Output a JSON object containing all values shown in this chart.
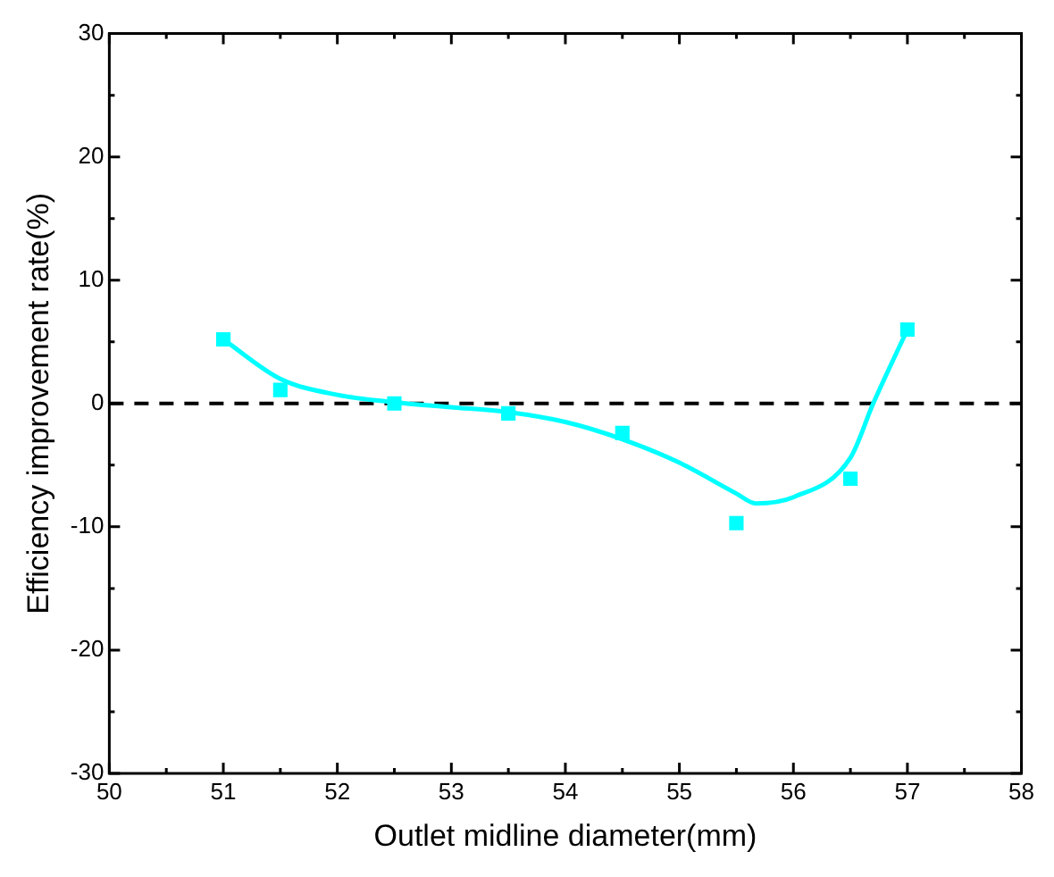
{
  "chart_data": {
    "type": "scatter",
    "xlabel": "Outlet midline diameter(mm)",
    "ylabel": "Efficiency improvement rate(%)",
    "xlim": [
      50,
      58
    ],
    "xticks": [
      50,
      51,
      52,
      53,
      54,
      55,
      56,
      57,
      58
    ],
    "ylim": [
      -30,
      30
    ],
    "yticks": [
      -30,
      -20,
      -10,
      0,
      10,
      20,
      30
    ],
    "grid": false,
    "legend": false,
    "marker": "square",
    "series": [
      {
        "type": "scatter",
        "color": "#00ffff",
        "x": [
          51,
          51.5,
          52.5,
          53.5,
          54.5,
          55.5,
          56.5,
          57
        ],
        "values": [
          5.2,
          1.1,
          0,
          -0.8,
          -2.4,
          -9.7,
          -6.1,
          6.0
        ]
      },
      {
        "type": "line",
        "color": "#00ffff",
        "marker": "none",
        "x": [
          51,
          51.5,
          52,
          52.5,
          53,
          53.5,
          54,
          54.5,
          55,
          55.5,
          55.67,
          56,
          56.5,
          56.7,
          57
        ],
        "values": [
          5.2,
          2.0,
          0.7,
          0.1,
          -0.3,
          -0.7,
          -1.5,
          -2.9,
          -4.8,
          -7.3,
          -8.1,
          -7.6,
          -4.4,
          0,
          6.0
        ]
      }
    ],
    "ref_lines": [
      {
        "axis": "y",
        "value": 0,
        "color": "#000000",
        "line_style": "dashed"
      }
    ]
  }
}
